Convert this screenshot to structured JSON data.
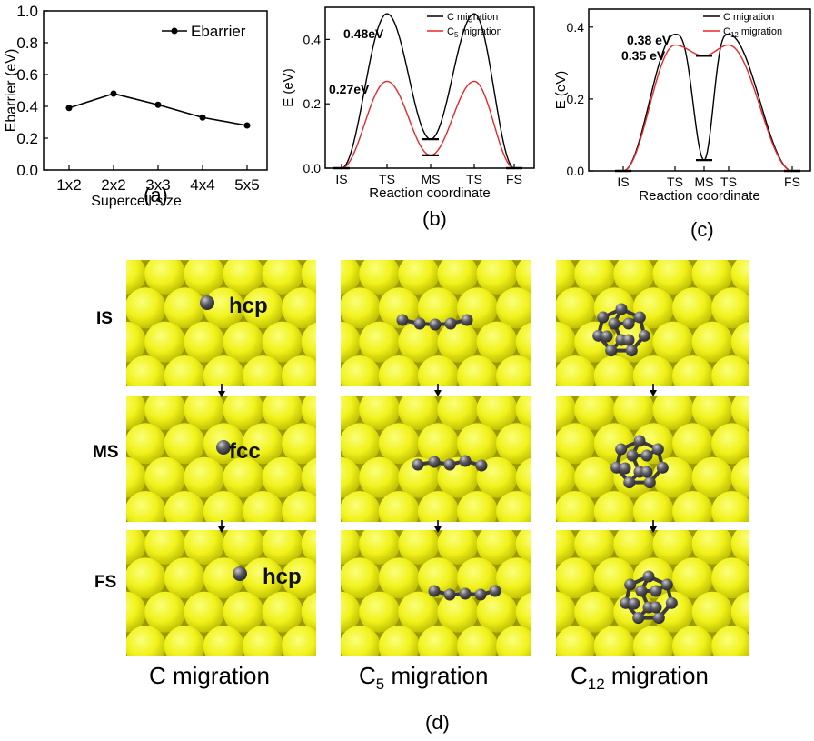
{
  "chart_data": [
    {
      "type": "line",
      "panel": "(a)",
      "categories": [
        "1x2",
        "2x2",
        "3x3",
        "4x4",
        "5x5"
      ],
      "series": [
        {
          "name": "Ebarrier",
          "values": [
            0.39,
            0.48,
            0.41,
            0.33,
            0.28
          ],
          "color": "#000000"
        }
      ],
      "xlabel": "Supercell size",
      "ylabel": "Ebarrier (eV)",
      "ylim": [
        0.0,
        1.0
      ],
      "yticks": [
        "0.0",
        "0.2",
        "0.4",
        "0.6",
        "0.8",
        "1.0"
      ],
      "legend": "top-right",
      "grid": false
    },
    {
      "type": "line",
      "panel": "(b)",
      "xticks": [
        "IS",
        "TS",
        "MS",
        "TS",
        "FS"
      ],
      "xlabel": "Reaction coordinate",
      "ylabel": "E (eV)",
      "ylim": [
        0.0,
        0.5
      ],
      "yticks": [
        "0.0",
        "0.2",
        "0.4"
      ],
      "series": [
        {
          "name": "C migration",
          "color": "#000000",
          "barrier": 0.48,
          "intermediate": 0.09
        },
        {
          "name_main": "C",
          "name_sub": "5",
          "name_rest": " migration",
          "color": "#e8262a",
          "barrier": 0.27,
          "intermediate": 0.04
        }
      ],
      "annotations": [
        "0.48eV",
        "0.27eV"
      ],
      "legend": "top-right"
    },
    {
      "type": "line",
      "panel": "(c)",
      "xticks": [
        "IS",
        "TS",
        "MS",
        "TS",
        "FS"
      ],
      "xlabel": "Reaction coordinate",
      "ylabel": "E (eV)",
      "ylim": [
        0.0,
        0.45
      ],
      "yticks": [
        "0.0",
        "0.2",
        "0.4"
      ],
      "series": [
        {
          "name": "C migration",
          "color": "#000000",
          "barrier": 0.38,
          "intermediate": 0.03
        },
        {
          "name_main": "C",
          "name_sub": "12",
          "name_rest": " migration",
          "color": "#e8262a",
          "barrier": 0.35,
          "intermediate": 0.32
        }
      ],
      "annotations": [
        "0.38 eV",
        "0.35 eV"
      ],
      "legend": "top-right"
    }
  ],
  "captions": {
    "a": "(a)",
    "b": "(b)",
    "c": "(c)",
    "d": "(d)"
  },
  "rows": [
    "IS",
    "MS",
    "FS"
  ],
  "site_labels": {
    "is": "hcp",
    "ms": "fcc",
    "fs": "hcp"
  },
  "columns": [
    {
      "main": "C migration",
      "sub": "",
      "rest": ""
    },
    {
      "main": "C",
      "sub": "5",
      "rest": " migration"
    },
    {
      "main": "C",
      "sub": "12",
      "rest": " migration"
    }
  ],
  "colors": {
    "atom_surface": "#f1f21a",
    "atom_carbon": "#5a5a60",
    "red": "#e8262a"
  }
}
